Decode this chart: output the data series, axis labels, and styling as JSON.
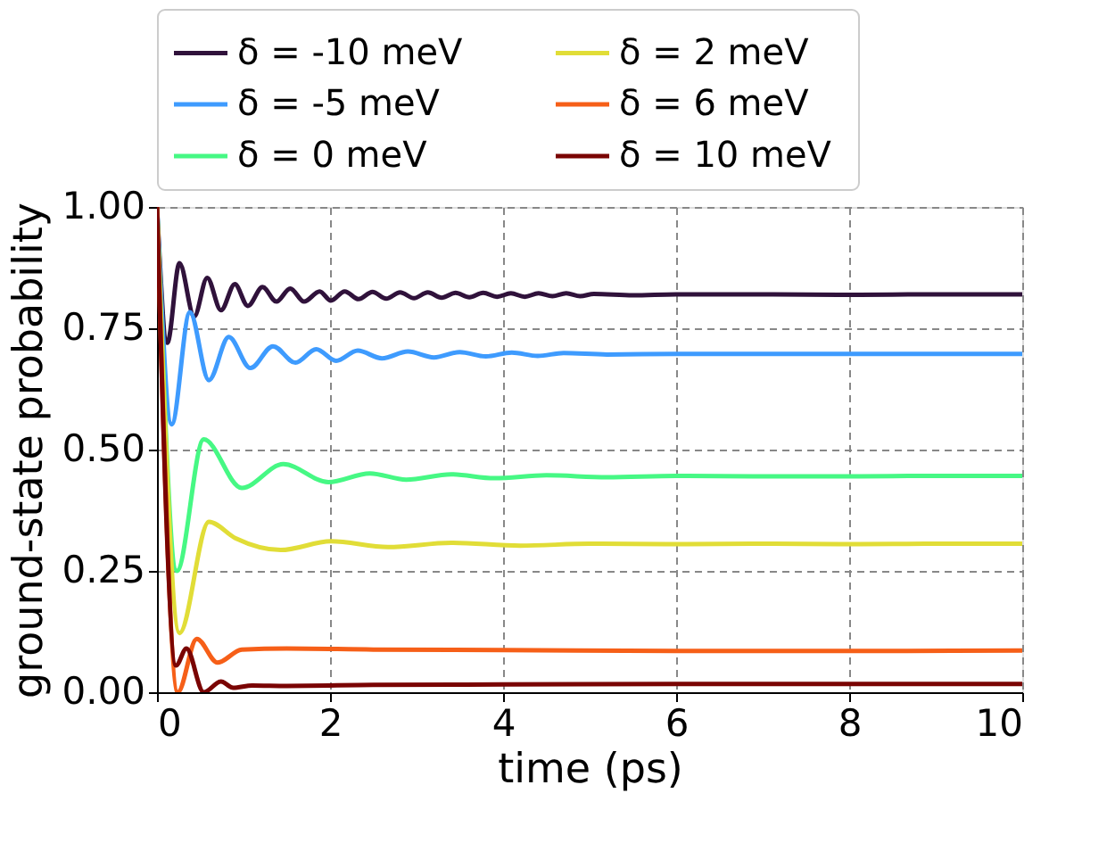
{
  "chart_data": {
    "type": "line",
    "xlabel": "time (ps)",
    "ylabel": "ground-state probability",
    "xlim": [
      0,
      10
    ],
    "xticks": [
      0,
      2,
      4,
      6,
      8,
      10
    ],
    "ylim": [
      0,
      1
    ],
    "yticks": [
      {
        "value": 0,
        "label": "0.00"
      },
      {
        "value": 0.25,
        "label": "0.25"
      },
      {
        "value": 0.5,
        "label": "0.50"
      },
      {
        "value": 0.75,
        "label": "0.75"
      },
      {
        "value": 1,
        "label": "1.00"
      }
    ],
    "grid": true,
    "legend": "top",
    "line_style": "solid",
    "marker": "none",
    "series": [
      {
        "name": "δ =  -10 meV",
        "color": "#30123b",
        "x": [
          0,
          0.12,
          0.26,
          0.43,
          0.58,
          0.74,
          0.9,
          1.05,
          1.22,
          1.38,
          1.54,
          1.7,
          1.88,
          2.01,
          2.17,
          2.33,
          2.49,
          2.65,
          2.81,
          2.97,
          3.13,
          3.29,
          3.45,
          3.61,
          3.77,
          3.93,
          4.09,
          4.25,
          4.41,
          4.57,
          4.73,
          4.89,
          5.05,
          5.5,
          6,
          7,
          8,
          9,
          10
        ],
        "values": [
          1,
          0.72,
          0.884,
          0.774,
          0.854,
          0.787,
          0.841,
          0.796,
          0.835,
          0.805,
          0.832,
          0.805,
          0.826,
          0.807,
          0.826,
          0.81,
          0.825,
          0.811,
          0.824,
          0.812,
          0.824,
          0.813,
          0.823,
          0.814,
          0.823,
          0.815,
          0.822,
          0.815,
          0.822,
          0.816,
          0.822,
          0.816,
          0.821,
          0.818,
          0.82,
          0.82,
          0.819,
          0.82,
          0.82
        ]
      },
      {
        "name": "δ =  -5 meV",
        "color": "#3e9bfe",
        "x": [
          0,
          0.17,
          0.38,
          0.6,
          0.83,
          1.08,
          1.34,
          1.6,
          1.84,
          2.07,
          2.32,
          2.6,
          2.9,
          3.2,
          3.5,
          3.8,
          4.1,
          4.4,
          4.7,
          5.2,
          6,
          7,
          8,
          9,
          10
        ],
        "values": [
          1,
          0.552,
          0.783,
          0.643,
          0.732,
          0.668,
          0.713,
          0.679,
          0.707,
          0.683,
          0.704,
          0.688,
          0.702,
          0.69,
          0.701,
          0.692,
          0.7,
          0.693,
          0.699,
          0.696,
          0.697,
          0.697,
          0.697,
          0.697,
          0.697
        ]
      },
      {
        "name": "δ =  0 meV",
        "color": "#46f884",
        "x": [
          0,
          0.23,
          0.54,
          0.98,
          1.46,
          1.98,
          2.46,
          2.88,
          3.4,
          3.9,
          4.5,
          5.2,
          6,
          7,
          8,
          9,
          10
        ],
        "values": [
          1,
          0.25,
          0.521,
          0.421,
          0.47,
          0.433,
          0.451,
          0.438,
          0.449,
          0.441,
          0.447,
          0.443,
          0.446,
          0.445,
          0.445,
          0.446,
          0.446
        ]
      },
      {
        "name": "δ =  2 meV",
        "color": "#e1dd37",
        "x": [
          0,
          0.26,
          0.6,
          0.91,
          1.43,
          2.01,
          2.67,
          3.4,
          4.2,
          5,
          6,
          7,
          8,
          9,
          10
        ],
        "values": [
          1,
          0.122,
          0.351,
          0.317,
          0.293,
          0.311,
          0.299,
          0.308,
          0.302,
          0.306,
          0.305,
          0.306,
          0.305,
          0.306,
          0.306
        ]
      },
      {
        "name": "δ =  6 meV",
        "color": "#f65f18",
        "x": [
          0,
          0.24,
          0.46,
          0.7,
          0.98,
          1.5,
          2.5,
          4,
          6,
          8,
          10
        ],
        "values": [
          1,
          0.0,
          0.11,
          0.061,
          0.088,
          0.09,
          0.088,
          0.087,
          0.085,
          0.085,
          0.086
        ]
      },
      {
        "name": "δ =  10 meV",
        "color": "#7a0403",
        "x": [
          0,
          0.22,
          0.34,
          0.54,
          0.74,
          0.88,
          1.1,
          1.5,
          2.5,
          4,
          6,
          8,
          10
        ],
        "values": [
          1,
          0.055,
          0.09,
          0.0,
          0.022,
          0.009,
          0.014,
          0.013,
          0.015,
          0.016,
          0.017,
          0.017,
          0.017
        ]
      }
    ]
  }
}
